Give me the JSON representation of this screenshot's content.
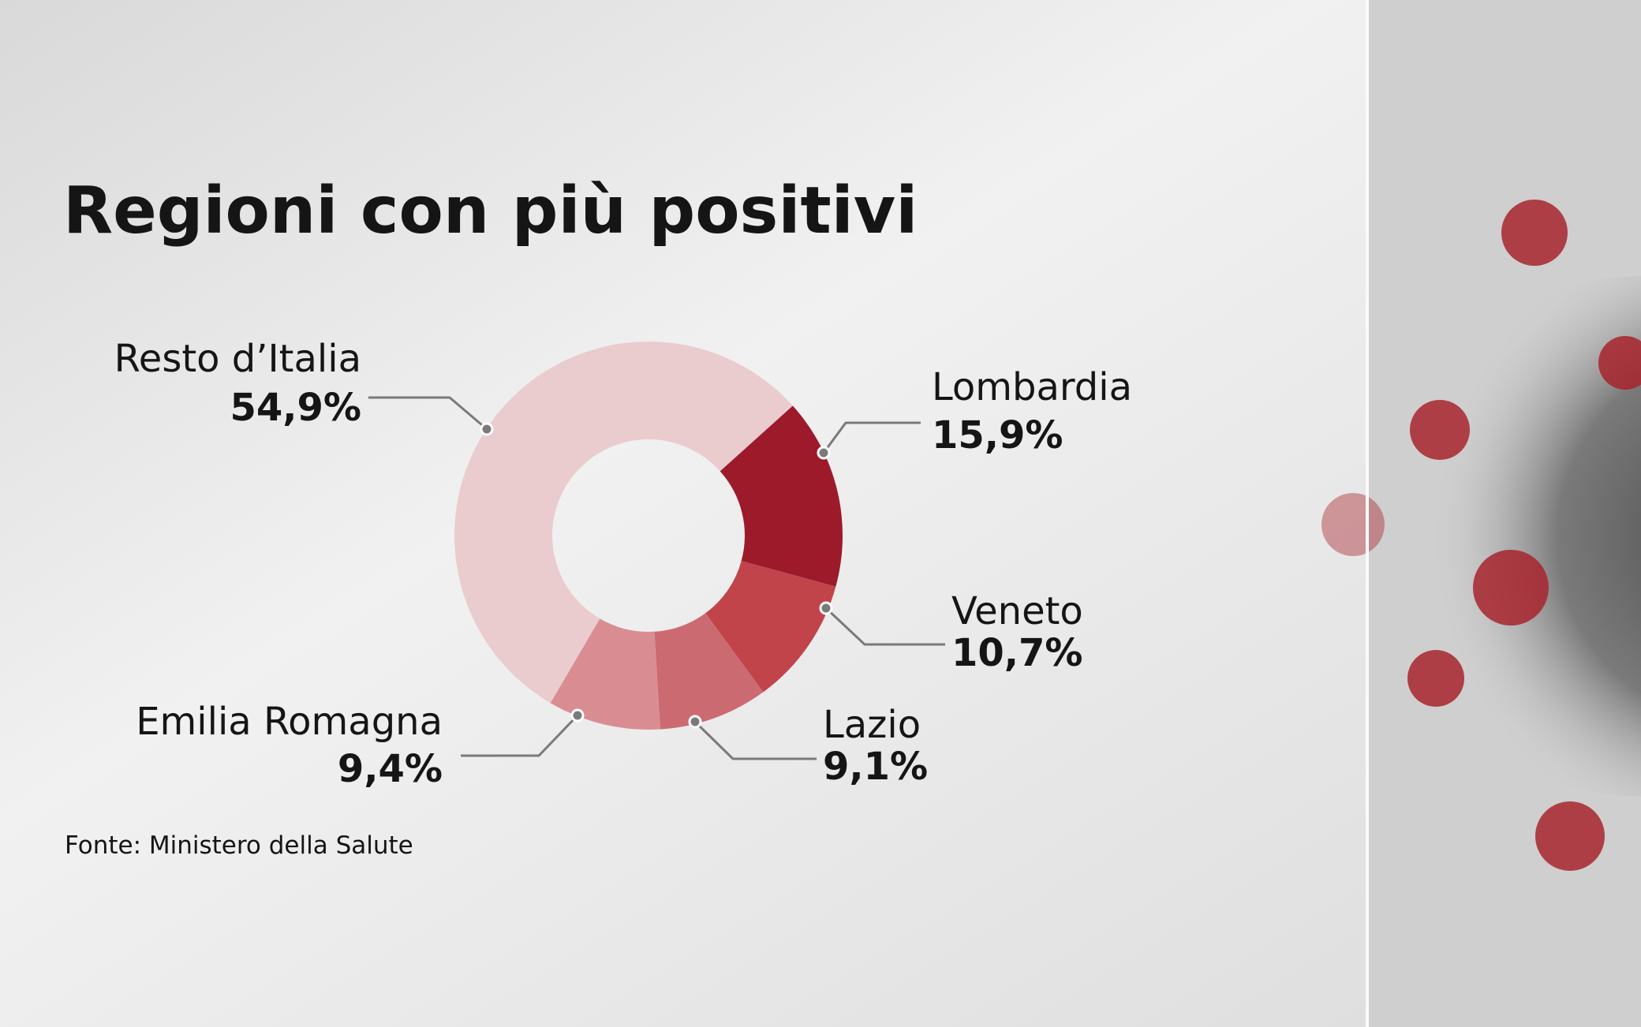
{
  "chart_data": {
    "type": "pie",
    "title": "Regioni con più positivi",
    "categories": [
      "Lombardia",
      "Veneto",
      "Lazio",
      "Emilia Romagna",
      "Resto d’Italia"
    ],
    "values": [
      15.9,
      10.7,
      9.1,
      9.4,
      54.9
    ],
    "value_labels": [
      "15,9%",
      "10,7%",
      "9,1%",
      "9,4%",
      "54,9%"
    ],
    "colors": [
      "#9c1a2a",
      "#c1444b",
      "#cc6a71",
      "#d98d92",
      "#e9c6c8"
    ],
    "source": "Fonte: Ministero della Salute"
  }
}
